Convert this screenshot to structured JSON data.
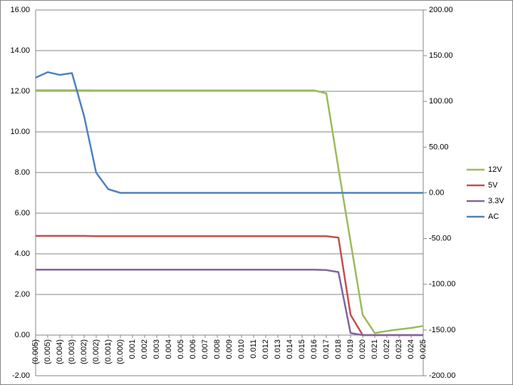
{
  "chart_data": {
    "type": "line",
    "categories": [
      "(0.005)",
      "(0.005)",
      "(0.004)",
      "(0.003)",
      "(0.002)",
      "(0.002)",
      "(0.001)",
      "(0.000)",
      "0.001",
      "0.002",
      "0.003",
      "0.004",
      "0.005",
      "0.006",
      "0.007",
      "0.008",
      "0.009",
      "0.010",
      "0.011",
      "0.012",
      "0.013",
      "0.014",
      "0.015",
      "0.016",
      "0.017",
      "0.018",
      "0.019",
      "0.020",
      "0.021",
      "0.022",
      "0.023",
      "0.024",
      "0.025"
    ],
    "series": [
      {
        "name": "12V",
        "color": "#9bbb59",
        "values": [
          12.05,
          12.05,
          12.05,
          12.05,
          12.05,
          12.04,
          12.04,
          12.04,
          12.04,
          12.04,
          12.04,
          12.04,
          12.04,
          12.04,
          12.04,
          12.04,
          12.04,
          12.04,
          12.04,
          12.04,
          12.04,
          12.04,
          12.04,
          12.04,
          11.9,
          8.2,
          4.6,
          1.0,
          0.1,
          0.2,
          0.28,
          0.35,
          0.45
        ]
      },
      {
        "name": "5V",
        "color": "#c0504d",
        "values": [
          4.88,
          4.88,
          4.88,
          4.88,
          4.88,
          4.87,
          4.87,
          4.87,
          4.87,
          4.87,
          4.87,
          4.87,
          4.87,
          4.87,
          4.87,
          4.87,
          4.87,
          4.87,
          4.87,
          4.87,
          4.87,
          4.87,
          4.87,
          4.87,
          4.87,
          4.8,
          1.0,
          0,
          0,
          0,
          0,
          0,
          0
        ]
      },
      {
        "name": "3.3V",
        "color": "#8064a2",
        "values": [
          3.22,
          3.22,
          3.22,
          3.22,
          3.22,
          3.22,
          3.22,
          3.22,
          3.22,
          3.22,
          3.22,
          3.22,
          3.22,
          3.22,
          3.22,
          3.22,
          3.22,
          3.22,
          3.22,
          3.22,
          3.22,
          3.22,
          3.22,
          3.22,
          3.2,
          3.1,
          0.1,
          0,
          0,
          0,
          0,
          0,
          0
        ]
      },
      {
        "name": "AC",
        "color": "#4f81bd",
        "axis": "y2",
        "values": [
          126,
          132,
          129,
          131,
          84,
          22,
          4,
          0,
          0,
          0,
          0,
          0,
          0,
          0,
          0,
          0,
          0,
          0,
          0,
          0,
          0,
          0,
          0,
          0,
          0,
          0,
          0,
          0,
          0,
          0,
          0,
          0,
          0
        ]
      }
    ],
    "ylim": [
      -2,
      16
    ],
    "yticks": [
      {
        "value": -2,
        "label": "-2.00"
      },
      {
        "value": 0,
        "label": "0.00"
      },
      {
        "value": 2,
        "label": "2.00"
      },
      {
        "value": 4,
        "label": "4.00"
      },
      {
        "value": 6,
        "label": "6.00"
      },
      {
        "value": 8,
        "label": "8.00"
      },
      {
        "value": 10,
        "label": "10.00"
      },
      {
        "value": 12,
        "label": "12.00"
      },
      {
        "value": 14,
        "label": "14.00"
      },
      {
        "value": 16,
        "label": "16.00"
      }
    ],
    "y2lim": [
      -200,
      200
    ],
    "y2ticks": [
      {
        "value": -200,
        "label": "-200.00"
      },
      {
        "value": -150,
        "label": "-150.00"
      },
      {
        "value": -100,
        "label": "-100.00"
      },
      {
        "value": -50,
        "label": "-50.00"
      },
      {
        "value": 0,
        "label": "0.00"
      },
      {
        "value": 50,
        "label": "50.00"
      },
      {
        "value": 100,
        "label": "100.00"
      },
      {
        "value": 150,
        "label": "150.00"
      },
      {
        "value": 200,
        "label": "200.00"
      }
    ],
    "grid": true,
    "legend": "right"
  }
}
